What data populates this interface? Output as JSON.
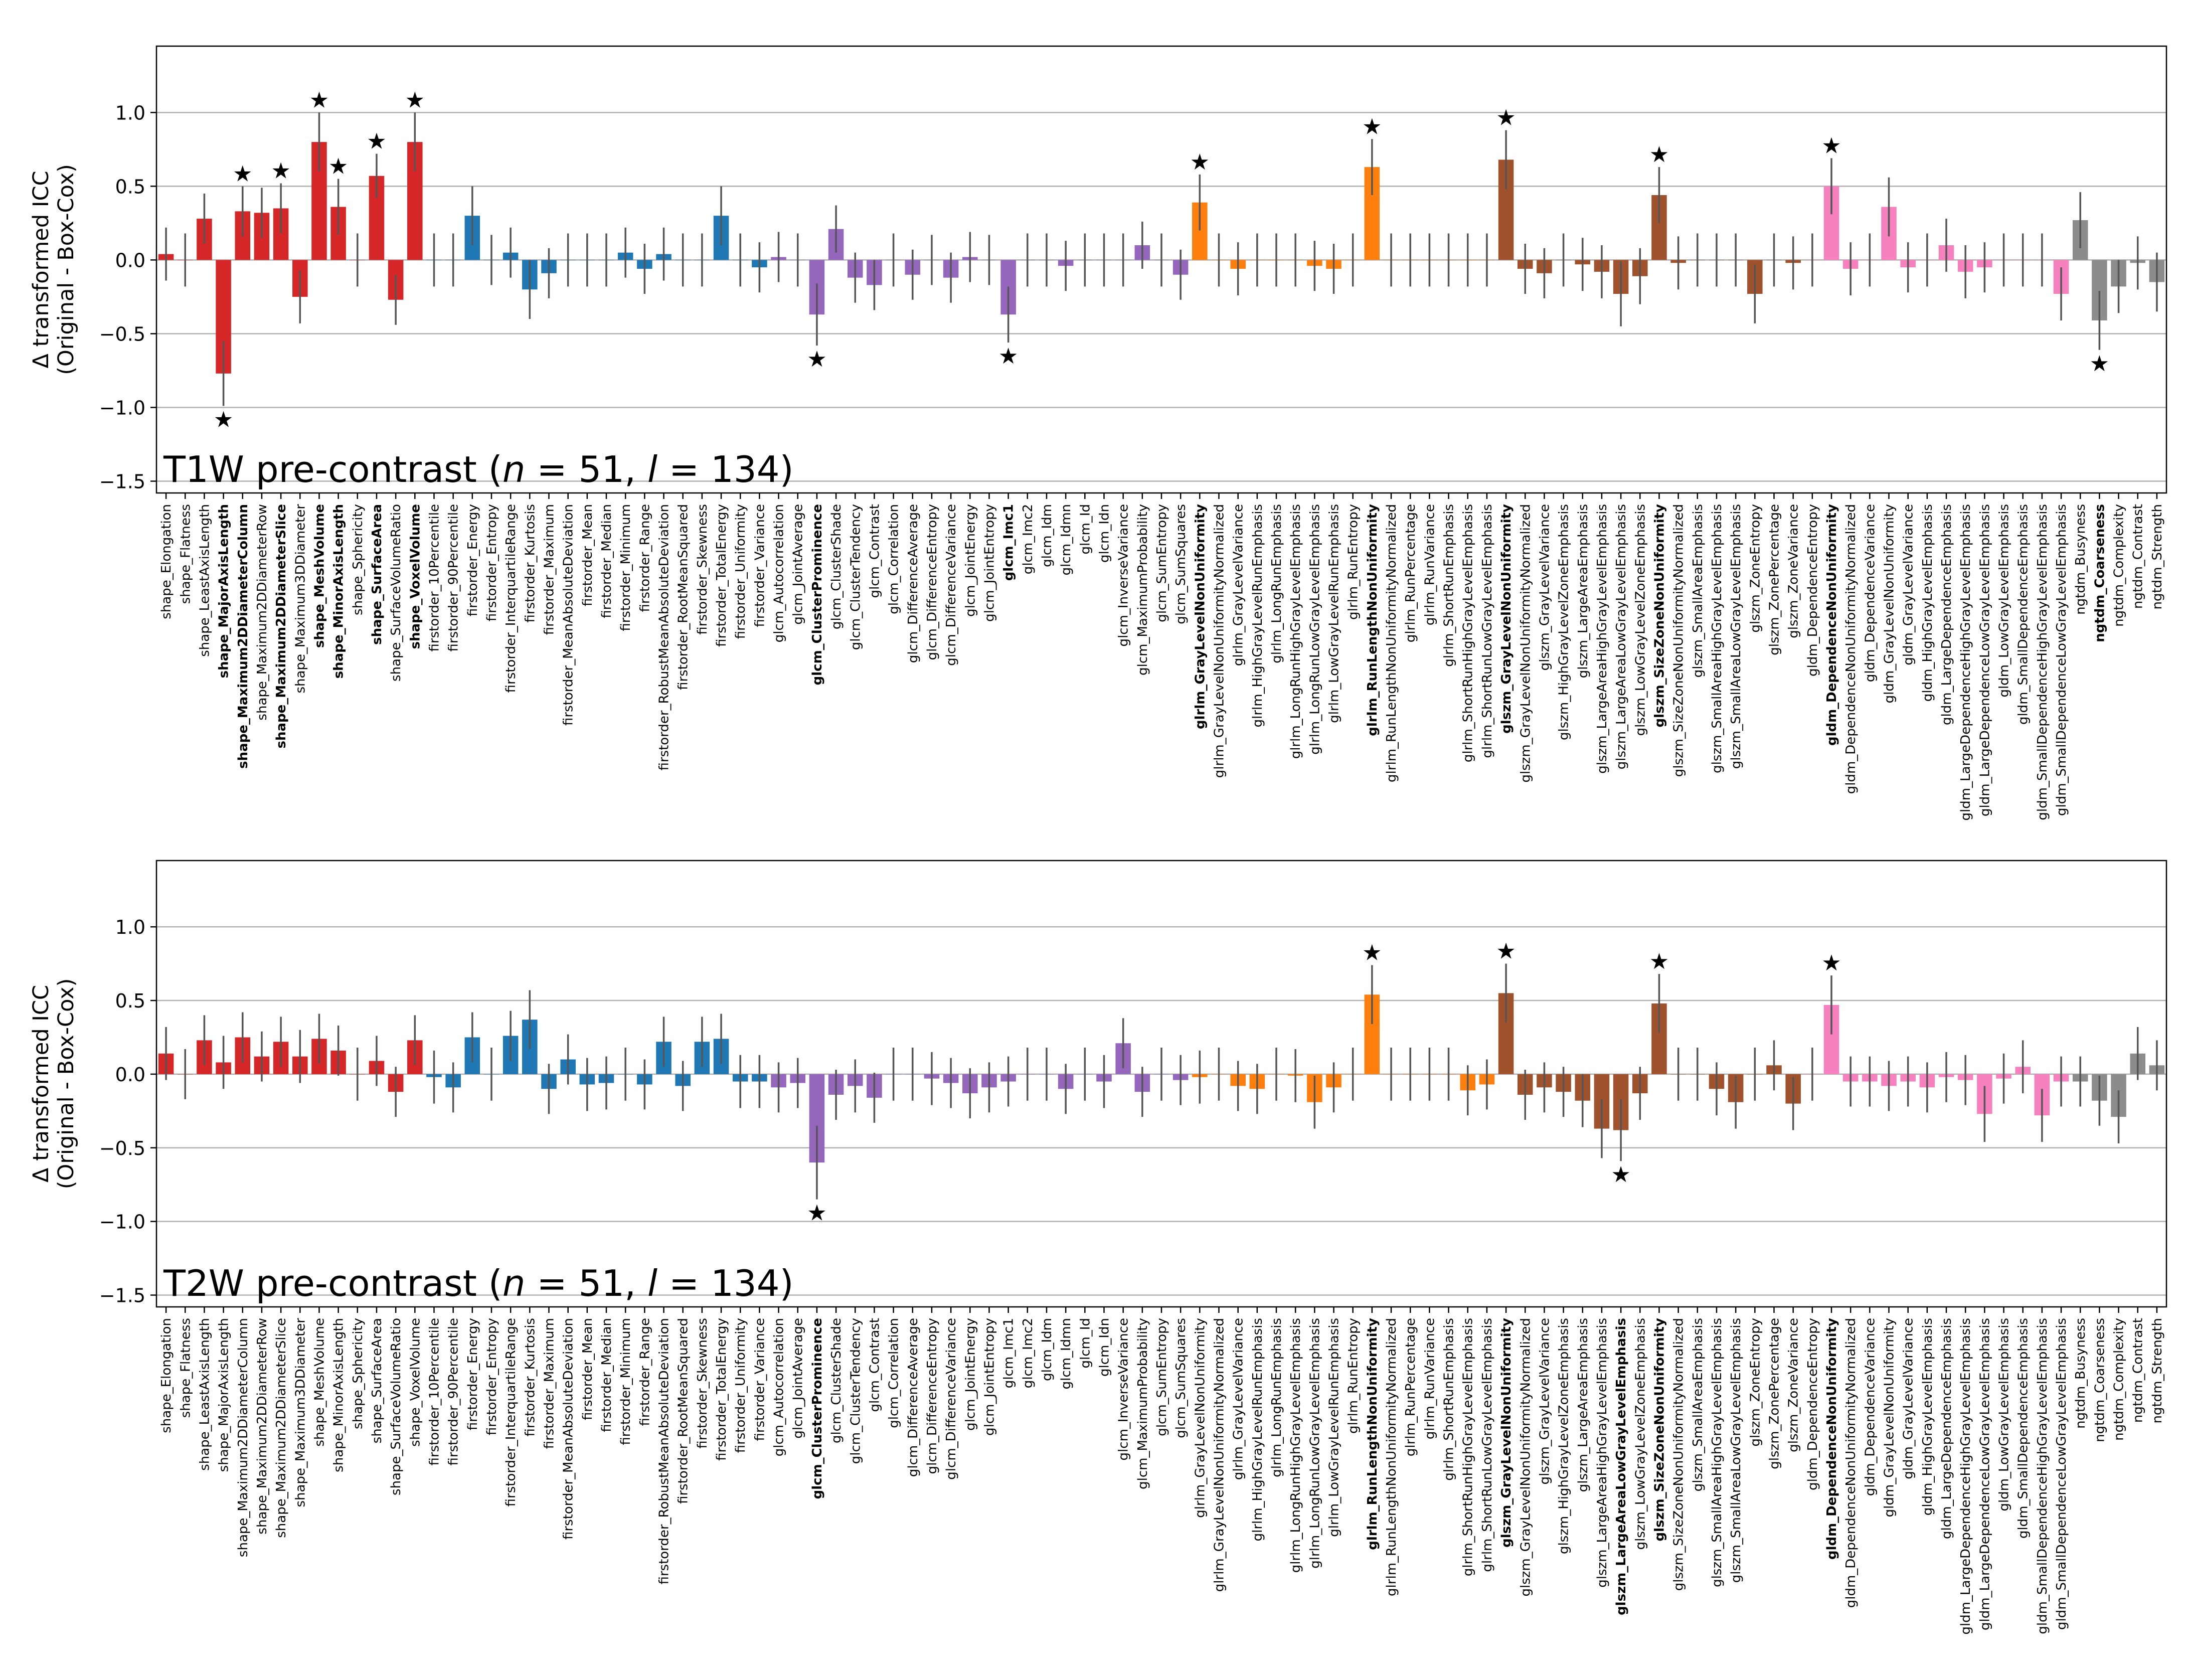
{
  "colors": {
    "shape": "#d62728",
    "firstorder": "#1f77b4",
    "glcm": "#9467bd",
    "glrlm": "#ff7f0e",
    "glszm": "#a0522d",
    "gldm": "#f781bf",
    "ngtdm": "#8c8c8c"
  },
  "chart_data": [
    {
      "type": "bar",
      "title": "T1W pre-contrast (n = 51, l = 134)",
      "ylabel_line1": "Δ transformed ICC",
      "ylabel_line2": "(Original - Box-Cox)",
      "ylim": [
        -1.58,
        1.45
      ],
      "yticks": [
        1.0,
        0.5,
        0.0,
        -0.5,
        -1.0,
        -1.5
      ],
      "ytick_labels": [
        "1.0",
        "0.5",
        "0.0",
        "−0.5",
        "−1.0",
        "−1.5"
      ],
      "grid": true,
      "categories": [
        "shape_Elongation",
        "shape_Flatness",
        "shape_LeastAxisLength",
        "shape_MajorAxisLength",
        "shape_Maximum2DDiameterColumn",
        "shape_Maximum2DDiameterRow",
        "shape_Maximum2DDiameterSlice",
        "shape_Maximum3DDiameter",
        "shape_MeshVolume",
        "shape_MinorAxisLength",
        "shape_Sphericity",
        "shape_SurfaceArea",
        "shape_SurfaceVolumeRatio",
        "shape_VoxelVolume",
        "firstorder_10Percentile",
        "firstorder_90Percentile",
        "firstorder_Energy",
        "firstorder_Entropy",
        "firstorder_InterquartileRange",
        "firstorder_Kurtosis",
        "firstorder_Maximum",
        "firstorder_MeanAbsoluteDeviation",
        "firstorder_Mean",
        "firstorder_Median",
        "firstorder_Minimum",
        "firstorder_Range",
        "firstorder_RobustMeanAbsoluteDeviation",
        "firstorder_RootMeanSquared",
        "firstorder_Skewness",
        "firstorder_TotalEnergy",
        "firstorder_Uniformity",
        "firstorder_Variance",
        "glcm_Autocorrelation",
        "glcm_JointAverage",
        "glcm_ClusterProminence",
        "glcm_ClusterShade",
        "glcm_ClusterTendency",
        "glcm_Contrast",
        "glcm_Correlation",
        "glcm_DifferenceAverage",
        "glcm_DifferenceEntropy",
        "glcm_DifferenceVariance",
        "glcm_JointEnergy",
        "glcm_JointEntropy",
        "glcm_Imc1",
        "glcm_Imc2",
        "glcm_Idm",
        "glcm_Idmn",
        "glcm_Id",
        "glcm_Idn",
        "glcm_InverseVariance",
        "glcm_MaximumProbability",
        "glcm_SumEntropy",
        "glcm_SumSquares",
        "glrlm_GrayLevelNonUniformity",
        "glrlm_GrayLevelNonUniformityNormalized",
        "glrlm_GrayLevelVariance",
        "glrlm_HighGrayLevelRunEmphasis",
        "glrlm_LongRunEmphasis",
        "glrlm_LongRunHighGrayLevelEmphasis",
        "glrlm_LongRunLowGrayLevelEmphasis",
        "glrlm_LowGrayLevelRunEmphasis",
        "glrlm_RunEntropy",
        "glrlm_RunLengthNonUniformity",
        "glrlm_RunLengthNonUniformityNormalized",
        "glrlm_RunPercentage",
        "glrlm_RunVariance",
        "glrlm_ShortRunEmphasis",
        "glrlm_ShortRunHighGrayLevelEmphasis",
        "glrlm_ShortRunLowGrayLevelEmphasis",
        "glszm_GrayLevelNonUniformity",
        "glszm_GrayLevelNonUniformityNormalized",
        "glszm_GrayLevelVariance",
        "glszm_HighGrayLevelZoneEmphasis",
        "glszm_LargeAreaEmphasis",
        "glszm_LargeAreaHighGrayLevelEmphasis",
        "glszm_LargeAreaLowGrayLevelEmphasis",
        "glszm_LowGrayLevelZoneEmphasis",
        "glszm_SizeZoneNonUniformity",
        "glszm_SizeZoneNonUniformityNormalized",
        "glszm_SmallAreaEmphasis",
        "glszm_SmallAreaHighGrayLevelEmphasis",
        "glszm_SmallAreaLowGrayLevelEmphasis",
        "glszm_ZoneEntropy",
        "glszm_ZonePercentage",
        "glszm_ZoneVariance",
        "gldm_DependenceEntropy",
        "gldm_DependenceNonUniformity",
        "gldm_DependenceNonUniformityNormalized",
        "gldm_DependenceVariance",
        "gldm_GrayLevelNonUniformity",
        "gldm_GrayLevelVariance",
        "gldm_HighGrayLevelEmphasis",
        "gldm_LargeDependenceEmphasis",
        "gldm_LargeDependenceHighGrayLevelEmphasis",
        "gldm_LargeDependenceLowGrayLevelEmphasis",
        "gldm_LowGrayLevelEmphasis",
        "gldm_SmallDependenceEmphasis",
        "gldm_SmallDependenceHighGrayLevelEmphasis",
        "gldm_SmallDependenceLowGrayLevelEmphasis",
        "ngtdm_Busyness",
        "ngtdm_Coarseness",
        "ngtdm_Complexity",
        "ngtdm_Contrast",
        "ngtdm_Strength"
      ],
      "groups": [
        "shape",
        "shape",
        "shape",
        "shape",
        "shape",
        "shape",
        "shape",
        "shape",
        "shape",
        "shape",
        "shape",
        "shape",
        "shape",
        "shape",
        "firstorder",
        "firstorder",
        "firstorder",
        "firstorder",
        "firstorder",
        "firstorder",
        "firstorder",
        "firstorder",
        "firstorder",
        "firstorder",
        "firstorder",
        "firstorder",
        "firstorder",
        "firstorder",
        "firstorder",
        "firstorder",
        "firstorder",
        "firstorder",
        "glcm",
        "glcm",
        "glcm",
        "glcm",
        "glcm",
        "glcm",
        "glcm",
        "glcm",
        "glcm",
        "glcm",
        "glcm",
        "glcm",
        "glcm",
        "glcm",
        "glcm",
        "glcm",
        "glcm",
        "glcm",
        "glcm",
        "glcm",
        "glcm",
        "glcm",
        "glrlm",
        "glrlm",
        "glrlm",
        "glrlm",
        "glrlm",
        "glrlm",
        "glrlm",
        "glrlm",
        "glrlm",
        "glrlm",
        "glrlm",
        "glrlm",
        "glrlm",
        "glrlm",
        "glrlm",
        "glrlm",
        "glszm",
        "glszm",
        "glszm",
        "glszm",
        "glszm",
        "glszm",
        "glszm",
        "glszm",
        "glszm",
        "glszm",
        "glszm",
        "glszm",
        "glszm",
        "glszm",
        "glszm",
        "glszm",
        "gldm",
        "gldm",
        "gldm",
        "gldm",
        "gldm",
        "gldm",
        "gldm",
        "gldm",
        "gldm",
        "gldm",
        "gldm",
        "gldm",
        "gldm",
        "gldm",
        "ngtdm",
        "ngtdm",
        "ngtdm",
        "ngtdm",
        "ngtdm"
      ],
      "values": [
        0.04,
        0.0,
        0.28,
        -0.77,
        0.33,
        0.32,
        0.35,
        -0.25,
        0.8,
        0.36,
        0.0,
        0.57,
        -0.27,
        0.8,
        0.0,
        0.0,
        0.3,
        0.0,
        0.05,
        -0.2,
        -0.09,
        0.0,
        0.0,
        0.0,
        0.05,
        -0.06,
        0.04,
        0.0,
        0.0,
        0.3,
        0.0,
        -0.05,
        0.02,
        0.0,
        -0.37,
        0.21,
        -0.12,
        -0.17,
        0.0,
        -0.1,
        0.0,
        -0.12,
        0.02,
        0.0,
        -0.37,
        0.0,
        0.0,
        -0.04,
        0.0,
        0.0,
        0.0,
        0.1,
        0.0,
        -0.1,
        0.39,
        0.0,
        -0.06,
        0.0,
        0.0,
        0.0,
        -0.04,
        -0.06,
        0.0,
        0.63,
        0.0,
        0.0,
        0.0,
        0.0,
        0.0,
        0.0,
        0.68,
        -0.06,
        -0.09,
        0.0,
        -0.03,
        -0.08,
        -0.23,
        -0.11,
        0.44,
        -0.02,
        0.0,
        0.0,
        0.0,
        -0.23,
        0.0,
        -0.02,
        0.0,
        0.5,
        -0.06,
        0.0,
        0.36,
        -0.05,
        0.0,
        0.1,
        -0.08,
        -0.05,
        0.0,
        0.0,
        0.0,
        -0.23,
        0.27,
        -0.41,
        -0.18,
        -0.02,
        -0.15
      ],
      "errors": [
        0.18,
        0.18,
        0.17,
        0.22,
        0.17,
        0.17,
        0.17,
        0.18,
        0.2,
        0.19,
        0.18,
        0.15,
        0.17,
        0.2,
        0.18,
        0.18,
        0.2,
        0.17,
        0.17,
        0.2,
        0.17,
        0.18,
        0.18,
        0.18,
        0.17,
        0.17,
        0.18,
        0.18,
        0.18,
        0.2,
        0.18,
        0.17,
        0.17,
        0.18,
        0.21,
        0.16,
        0.17,
        0.17,
        0.18,
        0.17,
        0.17,
        0.17,
        0.17,
        0.17,
        0.19,
        0.18,
        0.18,
        0.17,
        0.18,
        0.18,
        0.18,
        0.16,
        0.18,
        0.17,
        0.19,
        0.18,
        0.18,
        0.18,
        0.18,
        0.18,
        0.17,
        0.17,
        0.18,
        0.19,
        0.18,
        0.18,
        0.18,
        0.18,
        0.18,
        0.18,
        0.2,
        0.17,
        0.17,
        0.18,
        0.18,
        0.18,
        0.22,
        0.19,
        0.19,
        0.18,
        0.18,
        0.18,
        0.18,
        0.2,
        0.18,
        0.18,
        0.18,
        0.19,
        0.18,
        0.18,
        0.2,
        0.17,
        0.18,
        0.18,
        0.18,
        0.17,
        0.18,
        0.18,
        0.18,
        0.18,
        0.19,
        0.2,
        0.18,
        0.18,
        0.2
      ],
      "significant": [
        3,
        4,
        6,
        8,
        9,
        11,
        13,
        34,
        44,
        54,
        63,
        70,
        78,
        87,
        101
      ],
      "bold_labels": [
        3,
        4,
        6,
        8,
        9,
        11,
        13,
        34,
        44,
        54,
        63,
        70,
        78,
        87,
        101
      ]
    },
    {
      "type": "bar",
      "title": "T2W pre-contrast (n = 51, l = 134)",
      "ylabel_line1": "Δ transformed ICC",
      "ylabel_line2": "(Original - Box-Cox)",
      "ylim": [
        -1.58,
        1.45
      ],
      "yticks": [
        1.0,
        0.5,
        0.0,
        -0.5,
        -1.0,
        -1.5
      ],
      "ytick_labels": [
        "1.0",
        "0.5",
        "0.0",
        "−0.5",
        "−1.0",
        "−1.5"
      ],
      "grid": true,
      "categories": [
        "shape_Elongation",
        "shape_Flatness",
        "shape_LeastAxisLength",
        "shape_MajorAxisLength",
        "shape_Maximum2DDiameterColumn",
        "shape_Maximum2DDiameterRow",
        "shape_Maximum2DDiameterSlice",
        "shape_Maximum3DDiameter",
        "shape_MeshVolume",
        "shape_MinorAxisLength",
        "shape_Sphericity",
        "shape_SurfaceArea",
        "shape_SurfaceVolumeRatio",
        "shape_VoxelVolume",
        "firstorder_10Percentile",
        "firstorder_90Percentile",
        "firstorder_Energy",
        "firstorder_Entropy",
        "firstorder_InterquartileRange",
        "firstorder_Kurtosis",
        "firstorder_Maximum",
        "firstorder_MeanAbsoluteDeviation",
        "firstorder_Mean",
        "firstorder_Median",
        "firstorder_Minimum",
        "firstorder_Range",
        "firstorder_RobustMeanAbsoluteDeviation",
        "firstorder_RootMeanSquared",
        "firstorder_Skewness",
        "firstorder_TotalEnergy",
        "firstorder_Uniformity",
        "firstorder_Variance",
        "glcm_Autocorrelation",
        "glcm_JointAverage",
        "glcm_ClusterProminence",
        "glcm_ClusterShade",
        "glcm_ClusterTendency",
        "glcm_Contrast",
        "glcm_Correlation",
        "glcm_DifferenceAverage",
        "glcm_DifferenceEntropy",
        "glcm_DifferenceVariance",
        "glcm_JointEnergy",
        "glcm_JointEntropy",
        "glcm_Imc1",
        "glcm_Imc2",
        "glcm_Idm",
        "glcm_Idmn",
        "glcm_Id",
        "glcm_Idn",
        "glcm_InverseVariance",
        "glcm_MaximumProbability",
        "glcm_SumEntropy",
        "glcm_SumSquares",
        "glrlm_GrayLevelNonUniformity",
        "glrlm_GrayLevelNonUniformityNormalized",
        "glrlm_GrayLevelVariance",
        "glrlm_HighGrayLevelRunEmphasis",
        "glrlm_LongRunEmphasis",
        "glrlm_LongRunHighGrayLevelEmphasis",
        "glrlm_LongRunLowGrayLevelEmphasis",
        "glrlm_LowGrayLevelRunEmphasis",
        "glrlm_RunEntropy",
        "glrlm_RunLengthNonUniformity",
        "glrlm_RunLengthNonUniformityNormalized",
        "glrlm_RunPercentage",
        "glrlm_RunVariance",
        "glrlm_ShortRunEmphasis",
        "glrlm_ShortRunHighGrayLevelEmphasis",
        "glrlm_ShortRunLowGrayLevelEmphasis",
        "glszm_GrayLevelNonUniformity",
        "glszm_GrayLevelNonUniformityNormalized",
        "glszm_GrayLevelVariance",
        "glszm_HighGrayLevelZoneEmphasis",
        "glszm_LargeAreaEmphasis",
        "glszm_LargeAreaHighGrayLevelEmphasis",
        "glszm_LargeAreaLowGrayLevelEmphasis",
        "glszm_LowGrayLevelZoneEmphasis",
        "glszm_SizeZoneNonUniformity",
        "glszm_SizeZoneNonUniformityNormalized",
        "glszm_SmallAreaEmphasis",
        "glszm_SmallAreaHighGrayLevelEmphasis",
        "glszm_SmallAreaLowGrayLevelEmphasis",
        "glszm_ZoneEntropy",
        "glszm_ZonePercentage",
        "glszm_ZoneVariance",
        "gldm_DependenceEntropy",
        "gldm_DependenceNonUniformity",
        "gldm_DependenceNonUniformityNormalized",
        "gldm_DependenceVariance",
        "gldm_GrayLevelNonUniformity",
        "gldm_GrayLevelVariance",
        "gldm_HighGrayLevelEmphasis",
        "gldm_LargeDependenceEmphasis",
        "gldm_LargeDependenceHighGrayLevelEmphasis",
        "gldm_LargeDependenceLowGrayLevelEmphasis",
        "gldm_LowGrayLevelEmphasis",
        "gldm_SmallDependenceEmphasis",
        "gldm_SmallDependenceHighGrayLevelEmphasis",
        "gldm_SmallDependenceLowGrayLevelEmphasis",
        "ngtdm_Busyness",
        "ngtdm_Coarseness",
        "ngtdm_Complexity",
        "ngtdm_Contrast",
        "ngtdm_Strength"
      ],
      "groups": [
        "shape",
        "shape",
        "shape",
        "shape",
        "shape",
        "shape",
        "shape",
        "shape",
        "shape",
        "shape",
        "shape",
        "shape",
        "shape",
        "shape",
        "firstorder",
        "firstorder",
        "firstorder",
        "firstorder",
        "firstorder",
        "firstorder",
        "firstorder",
        "firstorder",
        "firstorder",
        "firstorder",
        "firstorder",
        "firstorder",
        "firstorder",
        "firstorder",
        "firstorder",
        "firstorder",
        "firstorder",
        "firstorder",
        "glcm",
        "glcm",
        "glcm",
        "glcm",
        "glcm",
        "glcm",
        "glcm",
        "glcm",
        "glcm",
        "glcm",
        "glcm",
        "glcm",
        "glcm",
        "glcm",
        "glcm",
        "glcm",
        "glcm",
        "glcm",
        "glcm",
        "glcm",
        "glcm",
        "glcm",
        "glrlm",
        "glrlm",
        "glrlm",
        "glrlm",
        "glrlm",
        "glrlm",
        "glrlm",
        "glrlm",
        "glrlm",
        "glrlm",
        "glrlm",
        "glrlm",
        "glrlm",
        "glrlm",
        "glrlm",
        "glrlm",
        "glszm",
        "glszm",
        "glszm",
        "glszm",
        "glszm",
        "glszm",
        "glszm",
        "glszm",
        "glszm",
        "glszm",
        "glszm",
        "glszm",
        "glszm",
        "glszm",
        "glszm",
        "glszm",
        "gldm",
        "gldm",
        "gldm",
        "gldm",
        "gldm",
        "gldm",
        "gldm",
        "gldm",
        "gldm",
        "gldm",
        "gldm",
        "gldm",
        "gldm",
        "gldm",
        "ngtdm",
        "ngtdm",
        "ngtdm",
        "ngtdm",
        "ngtdm"
      ],
      "values": [
        0.14,
        0.0,
        0.23,
        0.08,
        0.25,
        0.12,
        0.22,
        0.12,
        0.24,
        0.16,
        0.0,
        0.09,
        -0.12,
        0.23,
        -0.02,
        -0.09,
        0.25,
        0.0,
        0.26,
        0.37,
        -0.1,
        0.1,
        -0.07,
        -0.06,
        0.0,
        -0.07,
        0.22,
        -0.08,
        0.22,
        0.24,
        -0.05,
        -0.05,
        -0.09,
        -0.06,
        -0.6,
        -0.14,
        -0.08,
        -0.16,
        0.0,
        0.0,
        -0.03,
        -0.06,
        -0.13,
        -0.09,
        -0.05,
        0.0,
        0.0,
        -0.1,
        0.0,
        -0.05,
        0.21,
        -0.12,
        0.0,
        -0.04,
        -0.02,
        0.0,
        -0.08,
        -0.1,
        0.0,
        -0.01,
        -0.19,
        -0.09,
        0.0,
        0.54,
        0.0,
        0.0,
        0.0,
        0.0,
        -0.11,
        -0.07,
        0.55,
        -0.14,
        -0.09,
        -0.12,
        -0.18,
        -0.37,
        -0.38,
        -0.13,
        0.48,
        0.0,
        0.0,
        -0.1,
        -0.19,
        0.0,
        0.06,
        -0.2,
        0.0,
        0.47,
        -0.05,
        -0.05,
        -0.08,
        -0.05,
        -0.09,
        -0.02,
        -0.04,
        -0.27,
        -0.03,
        0.05,
        -0.28,
        -0.05,
        -0.05,
        -0.18,
        -0.29,
        0.14,
        0.06
      ],
      "errors": [
        0.18,
        0.17,
        0.17,
        0.18,
        0.17,
        0.17,
        0.17,
        0.18,
        0.17,
        0.17,
        0.18,
        0.17,
        0.17,
        0.17,
        0.18,
        0.17,
        0.17,
        0.18,
        0.17,
        0.2,
        0.17,
        0.17,
        0.18,
        0.18,
        0.18,
        0.17,
        0.17,
        0.17,
        0.17,
        0.17,
        0.18,
        0.18,
        0.17,
        0.17,
        0.25,
        0.17,
        0.18,
        0.17,
        0.18,
        0.18,
        0.18,
        0.17,
        0.17,
        0.17,
        0.17,
        0.18,
        0.18,
        0.17,
        0.18,
        0.18,
        0.17,
        0.17,
        0.18,
        0.17,
        0.18,
        0.18,
        0.17,
        0.17,
        0.18,
        0.18,
        0.18,
        0.17,
        0.18,
        0.2,
        0.18,
        0.18,
        0.18,
        0.18,
        0.17,
        0.17,
        0.2,
        0.17,
        0.17,
        0.17,
        0.18,
        0.2,
        0.21,
        0.18,
        0.2,
        0.18,
        0.18,
        0.18,
        0.18,
        0.18,
        0.17,
        0.18,
        0.18,
        0.2,
        0.17,
        0.17,
        0.17,
        0.17,
        0.17,
        0.17,
        0.17,
        0.19,
        0.17,
        0.18,
        0.18,
        0.17,
        0.17,
        0.17,
        0.18,
        0.18,
        0.17
      ],
      "significant": [
        34,
        63,
        70,
        76,
        78,
        87
      ],
      "bold_labels": [
        34,
        63,
        70,
        76,
        78,
        87
      ]
    }
  ]
}
